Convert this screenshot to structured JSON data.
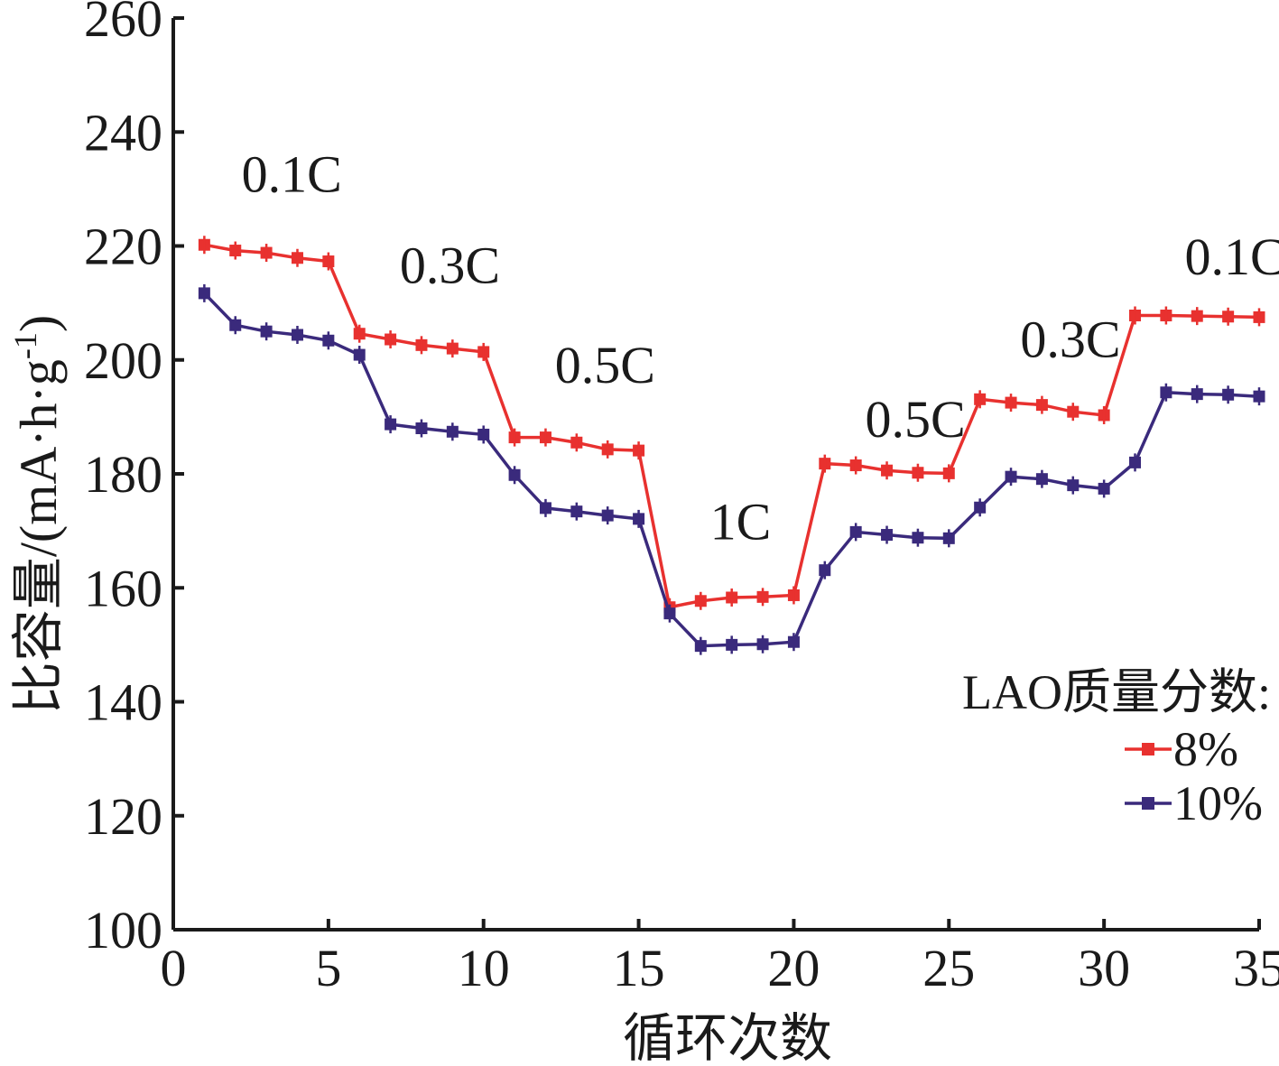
{
  "chart_data": {
    "type": "line",
    "xlabel": "循环次数",
    "ylabel": "比容量/(mA·h·g",
    "ylabel_sup": "-1",
    "ylabel_close": ")",
    "xlim": [
      0,
      35
    ],
    "ylim": [
      100,
      260
    ],
    "xticks": [
      0,
      5,
      10,
      15,
      20,
      25,
      30,
      35
    ],
    "yticks": [
      100,
      120,
      140,
      160,
      180,
      200,
      220,
      240,
      260
    ],
    "grid": false,
    "legend": {
      "title": "LAO质量分数:",
      "position": "right",
      "entries": [
        "8%",
        "10%"
      ]
    },
    "series": [
      {
        "name": "8%",
        "color": "#e8312f",
        "x": [
          1,
          2,
          3,
          4,
          5,
          6,
          7,
          8,
          9,
          10,
          11,
          12,
          13,
          14,
          15,
          16,
          17,
          18,
          19,
          20,
          21,
          22,
          23,
          24,
          25,
          26,
          27,
          28,
          29,
          30,
          31,
          32,
          33,
          34,
          35
        ],
        "values": [
          220.2,
          219.2,
          218.8,
          217.9,
          217.3,
          204.6,
          203.6,
          202.6,
          202.0,
          201.4,
          186.4,
          186.4,
          185.5,
          184.3,
          184.1,
          156.6,
          157.7,
          158.3,
          158.4,
          158.7,
          181.8,
          181.5,
          180.6,
          180.2,
          180.1,
          193.1,
          192.5,
          192.1,
          190.9,
          190.3,
          207.8,
          207.8,
          207.7,
          207.6,
          207.5
        ]
      },
      {
        "name": "10%",
        "color": "#3a2a7c",
        "x": [
          1,
          2,
          3,
          4,
          5,
          6,
          7,
          8,
          9,
          10,
          11,
          12,
          13,
          14,
          15,
          16,
          17,
          18,
          19,
          20,
          21,
          22,
          23,
          24,
          25,
          26,
          27,
          28,
          29,
          30,
          31,
          32,
          33,
          34,
          35
        ],
        "values": [
          211.7,
          206.1,
          205.0,
          204.4,
          203.4,
          200.9,
          188.7,
          188.0,
          187.4,
          186.9,
          179.8,
          174.0,
          173.4,
          172.7,
          172.1,
          155.5,
          149.8,
          150.0,
          150.1,
          150.5,
          163.1,
          169.8,
          169.3,
          168.8,
          168.7,
          174.1,
          179.5,
          179.1,
          178.0,
          177.4,
          182.0,
          194.3,
          194.0,
          193.9,
          193.6
        ]
      }
    ],
    "annotations": [
      {
        "text": "0.1C",
        "x": 2.2,
        "y": 229.5
      },
      {
        "text": "0.3C",
        "x": 7.3,
        "y": 213.5
      },
      {
        "text": "0.5C",
        "x": 12.3,
        "y": 196.0
      },
      {
        "text": "1C",
        "x": 17.3,
        "y": 168.5
      },
      {
        "text": "0.5C",
        "x": 22.3,
        "y": 186.5
      },
      {
        "text": "0.3C",
        "x": 27.3,
        "y": 200.5
      },
      {
        "text": "0.1C",
        "x": 32.6,
        "y": 215.0
      }
    ]
  }
}
